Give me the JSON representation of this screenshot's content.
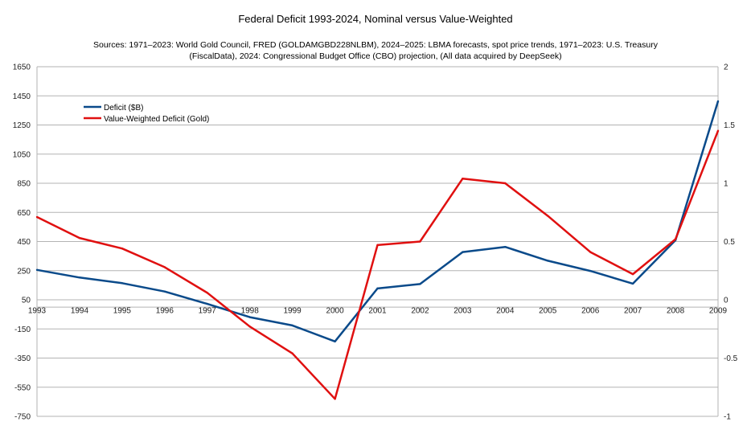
{
  "chart_data": {
    "type": "line",
    "title": "Federal Deficit 1993-2024, Nominal versus Value-Weighted",
    "subtitle_lines": [
      "Sources: 1971–2023: World Gold Council, FRED (GOLDAMGBD228NLBM), 2024–2025: LBMA forecasts, spot price trends, 1971–2023: U.S. Treasury",
      "(FiscalData), 2024: Congressional Budget Office (CBO) projection, (All data acquired by DeepSeek)"
    ],
    "categories": [
      "1993",
      "1994",
      "1995",
      "1996",
      "1997",
      "1998",
      "1999",
      "2000",
      "2001",
      "2002",
      "2003",
      "2004",
      "2005",
      "2006",
      "2007",
      "2008",
      "2009"
    ],
    "ylim_left": [
      -750,
      1650
    ],
    "yticks_left": [
      1650,
      1450,
      1250,
      1050,
      850,
      650,
      450,
      250,
      50,
      -150,
      -350,
      -550,
      -750
    ],
    "ylim_right": [
      -1,
      2
    ],
    "yticks_right": [
      {
        "value": 2,
        "label": "2"
      },
      {
        "value": 1.5,
        "label": "1.5"
      },
      {
        "value": 1,
        "label": "1"
      },
      {
        "value": 0.5,
        "label": "0.5"
      },
      {
        "value": 0,
        "label": "0"
      },
      {
        "value": -0.5,
        "label": "-0.5"
      },
      {
        "value": -1,
        "label": "-1"
      }
    ],
    "grid": true,
    "legend_position": "top-left",
    "series": [
      {
        "name": "Deficit ($B)",
        "axis": "left",
        "color": "#0a4a8a",
        "values": [
          255,
          203,
          164,
          107,
          22,
          -69,
          -126,
          -236,
          128,
          158,
          378,
          413,
          318,
          248,
          161,
          459,
          1413
        ]
      },
      {
        "name": "Value-Weighted Deficit (Gold)",
        "axis": "right",
        "color": "#e01010",
        "values": [
          0.71,
          0.53,
          0.44,
          0.28,
          0.06,
          -0.23,
          -0.46,
          -0.85,
          0.47,
          0.5,
          1.04,
          1.0,
          0.72,
          0.41,
          0.22,
          0.52,
          1.45
        ]
      }
    ]
  }
}
